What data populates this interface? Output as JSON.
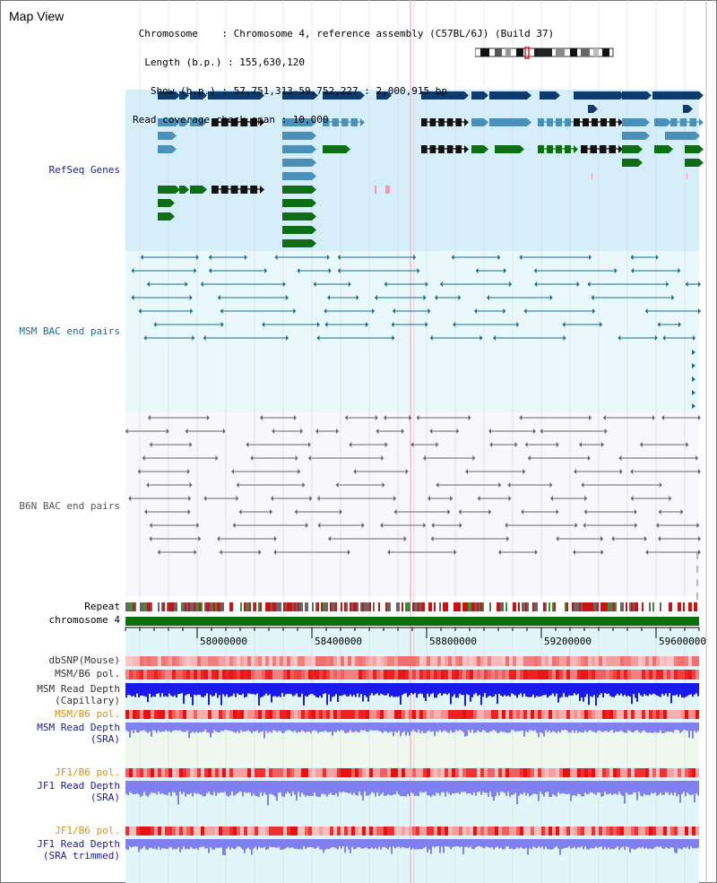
{
  "page": {
    "title": "Map View"
  },
  "info": {
    "chromosome_line": " Chromosome    : Chromosome 4, reference assembly (C57BL/6J) (Build 37)",
    "length_line": "  Length (b.p.) : 155,630,120",
    "show_line": "   Show (b.p.) : 57,751,313-59,752,227 : 2,000,915 bp",
    "span_line": "Read coverage check span : 10,000"
  },
  "tracks": {
    "refseq": "RefSeq Genes",
    "msm_bac": "MSM BAC end pairs",
    "b6n_bac": "B6N BAC end pairs",
    "repeat": "Repeat",
    "chrom": "chromosome 4",
    "dbsnp": "dbSNP(Mouse)",
    "msm_b6_pol": "MSM/B6 pol.",
    "msm_depth_cap_1": "MSM Read Depth",
    "msm_depth_cap_2": "(Capillary)",
    "msm_b6_pol_sra": "MSM/B6 pol.",
    "msm_depth_sra_1": "MSM Read Depth",
    "msm_depth_sra_2": "(SRA)",
    "jf1_pol_1": "JF1/B6 pol.",
    "jf1_depth_1": "JF1 Read Depth",
    "jf1_depth_1b": "(SRA)",
    "jf1_pol_2": "JF1/B6 pol.",
    "jf1_depth_2": "JF1 Read Depth",
    "jf1_depth_2b": "(SRA trimmed)"
  },
  "axis": {
    "ticks": [
      "58000000",
      "58400000",
      "58800000",
      "59200000",
      "59600000"
    ]
  },
  "colors": {
    "refseq_bg": "#d6eef9",
    "bac_bg": "#e8f8fb",
    "b6n_bg": "#f8f8fc",
    "gene_navy": "#0e3a6e",
    "gene_steel": "#4a90b8",
    "gene_green": "#0e6e16",
    "msm_line": "#1a6b8a",
    "b6n_line": "#666666",
    "chrom_bar": "#0a700a",
    "depth_blue": "#1a1aee",
    "depth_light": "#8080f0"
  }
}
